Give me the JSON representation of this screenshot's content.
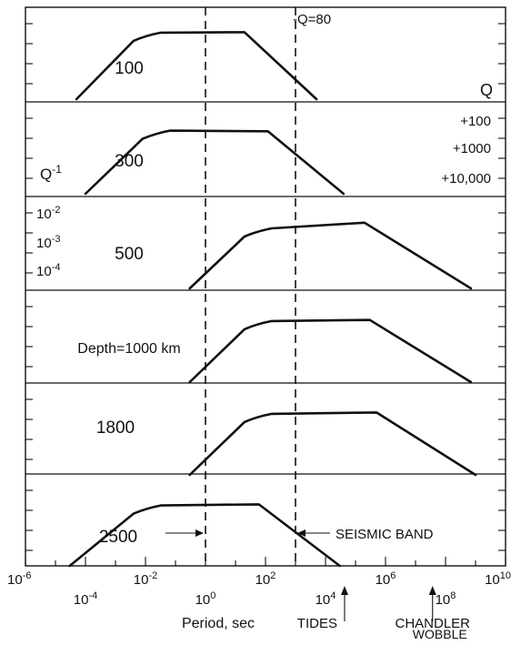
{
  "chart_data": {
    "type": "line",
    "x_axis": {
      "label": "Period, sec",
      "scale": "log",
      "range": [
        1e-06,
        10000000000.0
      ],
      "ticks": [
        {
          "value": 1e-06,
          "label": "10",
          "exp": "-6"
        },
        {
          "value": 0.0001,
          "label": "10",
          "exp": "-4"
        },
        {
          "value": 0.01,
          "label": "10",
          "exp": "-2"
        },
        {
          "value": 1.0,
          "label": "10",
          "exp": "0"
        },
        {
          "value": 100.0,
          "label": "10",
          "exp": "2"
        },
        {
          "value": 10000.0,
          "label": "10",
          "exp": "4"
        },
        {
          "value": 1000000.0,
          "label": "10",
          "exp": "6"
        },
        {
          "value": 100000000.0,
          "label": "10",
          "exp": "8"
        },
        {
          "value": 10000000000.0,
          "label": "10",
          "exp": "10"
        }
      ]
    },
    "y_axis": {
      "label": "Q",
      "label_inverse": "Q",
      "label_inverse_exp": "-1",
      "scale": "log",
      "range_inverse_q": [
        1e-05,
        0.1
      ],
      "q_ticks": [
        {
          "label": "+100",
          "q": 100
        },
        {
          "label": "+1000",
          "q": 1000
        },
        {
          "label": "+10,000",
          "q": 10000
        }
      ],
      "inverse_ticks": [
        {
          "label": "10",
          "exp": "-2",
          "value": 0.01
        },
        {
          "label": "10",
          "exp": "-3",
          "value": 0.001
        },
        {
          "label": "10",
          "exp": "-4",
          "value": 0.0001
        }
      ]
    },
    "series": [
      {
        "name": "100",
        "points": [
          [
            5e-05,
            1e-05
          ],
          [
            0.004,
            0.005
          ],
          [
            20,
            0.0125
          ],
          [
            5000,
            1e-05
          ]
        ],
        "annotation": "-Q=80"
      },
      {
        "name": "300",
        "points": [
          [
            0.0001,
            1e-05
          ],
          [
            0.008,
            0.0035
          ],
          [
            120,
            0.0078
          ],
          [
            40000,
            1e-05
          ]
        ]
      },
      {
        "name": "500",
        "points": [
          [
            0.3,
            1e-05
          ],
          [
            20,
            0.0025
          ],
          [
            200000,
            0.011
          ],
          [
            700000000,
            1e-05
          ]
        ]
      },
      {
        "name": "Depth=1000 km",
        "points": [
          [
            0.3,
            1e-05
          ],
          [
            20,
            0.0028
          ],
          [
            300000,
            0.0075
          ],
          [
            700000000,
            1e-05
          ]
        ]
      },
      {
        "name": "1800",
        "points": [
          [
            0.3,
            1e-05
          ],
          [
            20,
            0.0028
          ],
          [
            500000,
            0.0077
          ],
          [
            1000000000,
            1e-05
          ]
        ]
      },
      {
        "name": "2500",
        "points": [
          [
            3e-05,
            1e-05
          ],
          [
            0.004,
            0.0026
          ],
          [
            60,
            0.007
          ],
          [
            30000,
            1e-05
          ]
        ]
      }
    ],
    "annotations": {
      "seismic_band": {
        "label": "SEISMIC BAND",
        "range": [
          1,
          1000
        ]
      },
      "tides": {
        "label": "TIDES",
        "x": 43200
      },
      "chandler": {
        "label_line1": "CHANDLER",
        "label_line2": "WOBBLE",
        "x": 37000000
      }
    }
  }
}
